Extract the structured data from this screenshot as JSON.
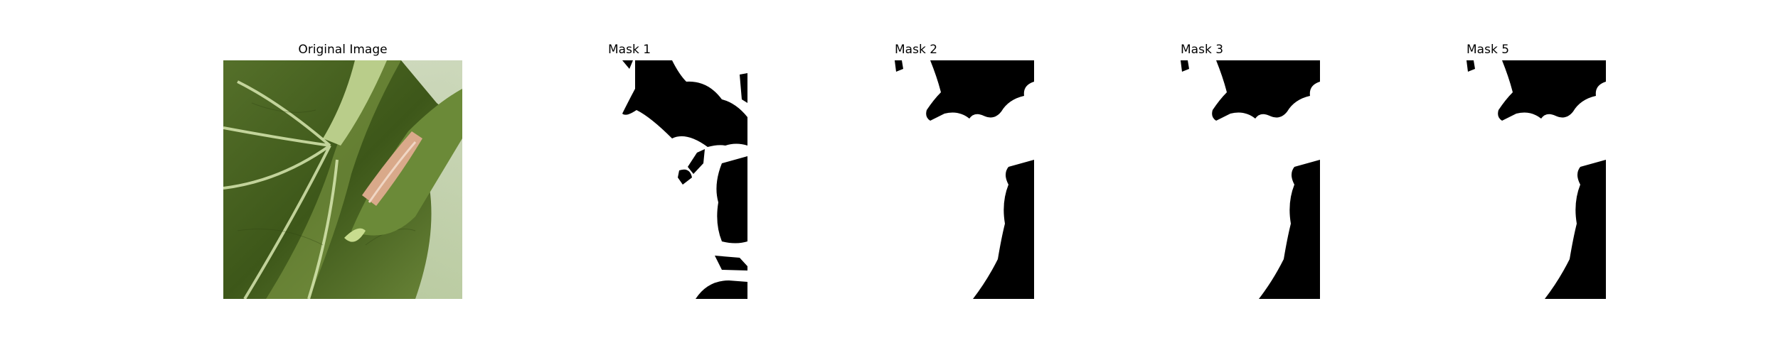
{
  "panels": [
    {
      "title": "Original Image"
    },
    {
      "title": "Mask 1"
    },
    {
      "title": "Mask 2"
    },
    {
      "title": "Mask 3"
    },
    {
      "title": "Mask 5"
    }
  ],
  "colors": {
    "mask_foreground": "#000000",
    "mask_background": "#ffffff",
    "leaf_dark": "#3f5a1e",
    "leaf_light": "#a9c37a",
    "vein": "#d8e8b0",
    "damage": "#d9a98a"
  }
}
